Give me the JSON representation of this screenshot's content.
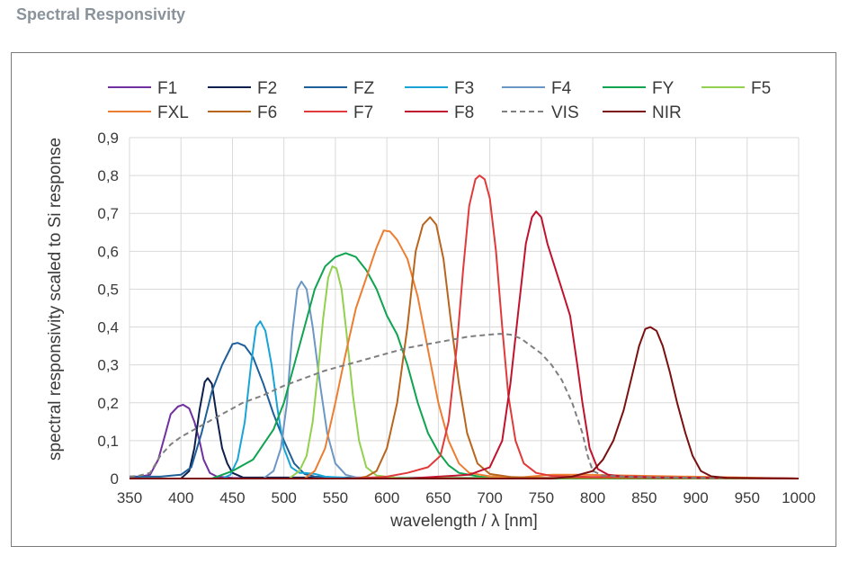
{
  "page": {
    "title": "Spectral Responsivity"
  },
  "chart_data": {
    "type": "line",
    "title": "Spectral Responsivity",
    "xlabel": "wavelength / λ [nm]",
    "ylabel": "spectral responsivity scaled to Si response",
    "xlim": [
      350,
      1000
    ],
    "ylim": [
      0,
      0.9
    ],
    "grid": true,
    "legend_position": "top",
    "x_ticks": [
      350,
      400,
      450,
      500,
      550,
      600,
      650,
      700,
      750,
      800,
      850,
      900,
      950,
      1000
    ],
    "x_tick_labels": [
      "350",
      "400",
      "450",
      "500",
      "550",
      "600",
      "650",
      "700",
      "750",
      "800",
      "850",
      "900",
      "950",
      "1000"
    ],
    "y_ticks": [
      0,
      0.1,
      0.2,
      0.3,
      0.4,
      0.5,
      0.6,
      0.7,
      0.8,
      0.9
    ],
    "y_tick_labels": [
      "0",
      "0,1",
      "0,2",
      "0,3",
      "0,4",
      "0,5",
      "0,6",
      "0,7",
      "0,8",
      "0,9"
    ],
    "series": [
      {
        "name": "F1",
        "color": "#7030a0",
        "dash": false,
        "points": [
          [
            350,
            0.005
          ],
          [
            360,
            0.005
          ],
          [
            370,
            0.01
          ],
          [
            378,
            0.05
          ],
          [
            385,
            0.12
          ],
          [
            390,
            0.17
          ],
          [
            397,
            0.19
          ],
          [
            402,
            0.195
          ],
          [
            408,
            0.185
          ],
          [
            413,
            0.15
          ],
          [
            418,
            0.1
          ],
          [
            422,
            0.05
          ],
          [
            428,
            0.015
          ],
          [
            435,
            0.005
          ],
          [
            450,
            0.002
          ],
          [
            1000,
            0
          ]
        ]
      },
      {
        "name": "F2",
        "color": "#0d1f4d",
        "dash": false,
        "points": [
          [
            350,
            0
          ],
          [
            400,
            0
          ],
          [
            408,
            0.02
          ],
          [
            413,
            0.08
          ],
          [
            418,
            0.18
          ],
          [
            423,
            0.255
          ],
          [
            426,
            0.265
          ],
          [
            430,
            0.25
          ],
          [
            435,
            0.16
          ],
          [
            440,
            0.08
          ],
          [
            445,
            0.04
          ],
          [
            450,
            0.015
          ],
          [
            460,
            0.003
          ],
          [
            1000,
            0
          ]
        ]
      },
      {
        "name": "FZ",
        "color": "#1f5f99",
        "dash": false,
        "points": [
          [
            350,
            0.005
          ],
          [
            360,
            0.005
          ],
          [
            380,
            0.005
          ],
          [
            400,
            0.01
          ],
          [
            410,
            0.03
          ],
          [
            420,
            0.12
          ],
          [
            430,
            0.23
          ],
          [
            440,
            0.3
          ],
          [
            450,
            0.355
          ],
          [
            455,
            0.358
          ],
          [
            462,
            0.35
          ],
          [
            470,
            0.32
          ],
          [
            480,
            0.25
          ],
          [
            490,
            0.17
          ],
          [
            500,
            0.1
          ],
          [
            510,
            0.04
          ],
          [
            520,
            0.012
          ],
          [
            530,
            0.005
          ],
          [
            560,
            0.002
          ],
          [
            1000,
            0
          ]
        ]
      },
      {
        "name": "F3",
        "color": "#19a3d6",
        "dash": false,
        "points": [
          [
            350,
            0
          ],
          [
            440,
            0
          ],
          [
            448,
            0.01
          ],
          [
            455,
            0.05
          ],
          [
            462,
            0.15
          ],
          [
            468,
            0.3
          ],
          [
            473,
            0.4
          ],
          [
            477,
            0.415
          ],
          [
            482,
            0.39
          ],
          [
            488,
            0.3
          ],
          [
            494,
            0.18
          ],
          [
            500,
            0.08
          ],
          [
            507,
            0.03
          ],
          [
            515,
            0.015
          ],
          [
            520,
            0.015
          ],
          [
            530,
            0.012
          ],
          [
            540,
            0.005
          ],
          [
            560,
            0.002
          ],
          [
            1000,
            0
          ]
        ]
      },
      {
        "name": "F4",
        "color": "#6c96c4",
        "dash": false,
        "points": [
          [
            350,
            0
          ],
          [
            480,
            0
          ],
          [
            490,
            0.02
          ],
          [
            497,
            0.08
          ],
          [
            503,
            0.2
          ],
          [
            508,
            0.38
          ],
          [
            513,
            0.5
          ],
          [
            517,
            0.52
          ],
          [
            522,
            0.5
          ],
          [
            528,
            0.4
          ],
          [
            535,
            0.25
          ],
          [
            542,
            0.12
          ],
          [
            550,
            0.04
          ],
          [
            560,
            0.01
          ],
          [
            570,
            0.003
          ],
          [
            1000,
            0
          ]
        ]
      },
      {
        "name": "FY",
        "color": "#10a350",
        "dash": false,
        "points": [
          [
            350,
            0
          ],
          [
            430,
            0
          ],
          [
            450,
            0.02
          ],
          [
            470,
            0.05
          ],
          [
            480,
            0.09
          ],
          [
            490,
            0.13
          ],
          [
            500,
            0.2
          ],
          [
            510,
            0.3
          ],
          [
            520,
            0.4
          ],
          [
            530,
            0.5
          ],
          [
            540,
            0.56
          ],
          [
            550,
            0.585
          ],
          [
            560,
            0.595
          ],
          [
            570,
            0.585
          ],
          [
            580,
            0.55
          ],
          [
            590,
            0.5
          ],
          [
            600,
            0.43
          ],
          [
            610,
            0.38
          ],
          [
            620,
            0.3
          ],
          [
            630,
            0.2
          ],
          [
            640,
            0.12
          ],
          [
            650,
            0.07
          ],
          [
            660,
            0.035
          ],
          [
            670,
            0.015
          ],
          [
            690,
            0.005
          ],
          [
            720,
            0
          ],
          [
            1000,
            0
          ]
        ]
      },
      {
        "name": "F5",
        "color": "#92d050",
        "dash": false,
        "points": [
          [
            350,
            0
          ],
          [
            505,
            0
          ],
          [
            515,
            0.02
          ],
          [
            522,
            0.06
          ],
          [
            528,
            0.15
          ],
          [
            533,
            0.28
          ],
          [
            538,
            0.42
          ],
          [
            543,
            0.53
          ],
          [
            547,
            0.56
          ],
          [
            551,
            0.555
          ],
          [
            556,
            0.5
          ],
          [
            561,
            0.38
          ],
          [
            567,
            0.22
          ],
          [
            573,
            0.1
          ],
          [
            580,
            0.03
          ],
          [
            590,
            0.008
          ],
          [
            610,
            0.002
          ],
          [
            1000,
            0
          ]
        ]
      },
      {
        "name": "FXL",
        "color": "#ed7d31",
        "dash": false,
        "points": [
          [
            350,
            0
          ],
          [
            520,
            0
          ],
          [
            530,
            0.02
          ],
          [
            540,
            0.08
          ],
          [
            550,
            0.2
          ],
          [
            560,
            0.33
          ],
          [
            570,
            0.45
          ],
          [
            580,
            0.53
          ],
          [
            590,
            0.61
          ],
          [
            597,
            0.655
          ],
          [
            603,
            0.652
          ],
          [
            610,
            0.63
          ],
          [
            620,
            0.58
          ],
          [
            630,
            0.48
          ],
          [
            640,
            0.34
          ],
          [
            650,
            0.2
          ],
          [
            660,
            0.1
          ],
          [
            670,
            0.04
          ],
          [
            680,
            0.015
          ],
          [
            700,
            0.006
          ],
          [
            730,
            0.003
          ],
          [
            760,
            0.01
          ],
          [
            790,
            0.01
          ],
          [
            1000,
            0
          ]
        ]
      },
      {
        "name": "F6",
        "color": "#b8651e",
        "dash": false,
        "points": [
          [
            350,
            0
          ],
          [
            570,
            0
          ],
          [
            580,
            0.005
          ],
          [
            590,
            0.02
          ],
          [
            600,
            0.08
          ],
          [
            610,
            0.2
          ],
          [
            620,
            0.4
          ],
          [
            628,
            0.6
          ],
          [
            635,
            0.67
          ],
          [
            642,
            0.69
          ],
          [
            648,
            0.67
          ],
          [
            655,
            0.58
          ],
          [
            662,
            0.42
          ],
          [
            670,
            0.25
          ],
          [
            678,
            0.12
          ],
          [
            688,
            0.04
          ],
          [
            700,
            0.012
          ],
          [
            720,
            0.004
          ],
          [
            750,
            0.002
          ],
          [
            800,
            0.002
          ],
          [
            1000,
            0
          ]
        ]
      },
      {
        "name": "F7",
        "color": "#e03a3a",
        "dash": false,
        "points": [
          [
            350,
            0
          ],
          [
            560,
            0
          ],
          [
            580,
            0.002
          ],
          [
            600,
            0.005
          ],
          [
            620,
            0.015
          ],
          [
            640,
            0.03
          ],
          [
            652,
            0.06
          ],
          [
            660,
            0.15
          ],
          [
            668,
            0.35
          ],
          [
            674,
            0.55
          ],
          [
            680,
            0.72
          ],
          [
            686,
            0.79
          ],
          [
            690,
            0.8
          ],
          [
            695,
            0.79
          ],
          [
            700,
            0.74
          ],
          [
            706,
            0.6
          ],
          [
            712,
            0.4
          ],
          [
            718,
            0.22
          ],
          [
            725,
            0.1
          ],
          [
            733,
            0.04
          ],
          [
            745,
            0.015
          ],
          [
            760,
            0.007
          ],
          [
            800,
            0.004
          ],
          [
            840,
            0.006
          ],
          [
            860,
            0.003
          ],
          [
            1000,
            0
          ]
        ]
      },
      {
        "name": "F8",
        "color": "#c0142e",
        "dash": false,
        "points": [
          [
            350,
            0
          ],
          [
            620,
            0
          ],
          [
            650,
            0.005
          ],
          [
            680,
            0.01
          ],
          [
            700,
            0.03
          ],
          [
            712,
            0.1
          ],
          [
            720,
            0.25
          ],
          [
            728,
            0.45
          ],
          [
            735,
            0.62
          ],
          [
            741,
            0.69
          ],
          [
            745,
            0.705
          ],
          [
            750,
            0.69
          ],
          [
            756,
            0.62
          ],
          [
            763,
            0.56
          ],
          [
            770,
            0.5
          ],
          [
            778,
            0.43
          ],
          [
            785,
            0.3
          ],
          [
            790,
            0.2
          ],
          [
            797,
            0.08
          ],
          [
            805,
            0.025
          ],
          [
            815,
            0.01
          ],
          [
            830,
            0.005
          ],
          [
            860,
            0.003
          ],
          [
            1000,
            0
          ]
        ]
      },
      {
        "name": "VIS",
        "color": "#7f7f7f",
        "dash": true,
        "points": [
          [
            350,
            0.005
          ],
          [
            360,
            0.008
          ],
          [
            370,
            0.015
          ],
          [
            380,
            0.06
          ],
          [
            390,
            0.09
          ],
          [
            400,
            0.11
          ],
          [
            420,
            0.14
          ],
          [
            440,
            0.17
          ],
          [
            460,
            0.2
          ],
          [
            480,
            0.22
          ],
          [
            500,
            0.245
          ],
          [
            520,
            0.265
          ],
          [
            540,
            0.285
          ],
          [
            560,
            0.3
          ],
          [
            580,
            0.315
          ],
          [
            600,
            0.33
          ],
          [
            620,
            0.345
          ],
          [
            640,
            0.355
          ],
          [
            660,
            0.365
          ],
          [
            680,
            0.375
          ],
          [
            700,
            0.38
          ],
          [
            710,
            0.382
          ],
          [
            720,
            0.38
          ],
          [
            730,
            0.37
          ],
          [
            740,
            0.35
          ],
          [
            750,
            0.33
          ],
          [
            760,
            0.3
          ],
          [
            770,
            0.26
          ],
          [
            780,
            0.2
          ],
          [
            790,
            0.12
          ],
          [
            795,
            0.06
          ],
          [
            800,
            0.02
          ],
          [
            810,
            0.008
          ],
          [
            830,
            0.005
          ],
          [
            860,
            0.003
          ],
          [
            900,
            0.002
          ],
          [
            1000,
            0
          ]
        ]
      },
      {
        "name": "NIR",
        "color": "#7b1010",
        "dash": false,
        "points": [
          [
            350,
            0
          ],
          [
            760,
            0
          ],
          [
            780,
            0.005
          ],
          [
            800,
            0.02
          ],
          [
            810,
            0.05
          ],
          [
            820,
            0.1
          ],
          [
            830,
            0.18
          ],
          [
            838,
            0.27
          ],
          [
            845,
            0.35
          ],
          [
            851,
            0.395
          ],
          [
            856,
            0.4
          ],
          [
            862,
            0.39
          ],
          [
            868,
            0.35
          ],
          [
            875,
            0.28
          ],
          [
            882,
            0.2
          ],
          [
            890,
            0.12
          ],
          [
            897,
            0.06
          ],
          [
            905,
            0.02
          ],
          [
            915,
            0.006
          ],
          [
            930,
            0.002
          ],
          [
            1000,
            0
          ]
        ]
      }
    ]
  }
}
